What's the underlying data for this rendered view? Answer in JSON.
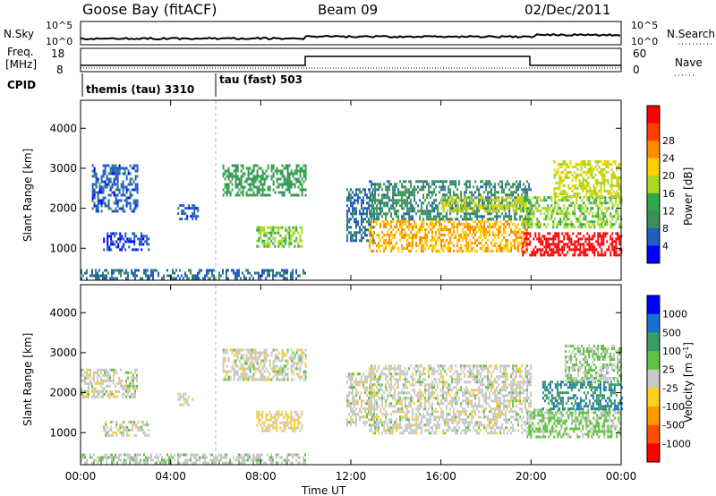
{
  "header": {
    "site": "Goose Bay (fitACF)",
    "beam": "Beam 09",
    "date": "02/Dec/2011"
  },
  "sidepanel": {
    "nsky": "N.Sky",
    "nsky_ticks": [
      "10^5",
      "10^0"
    ],
    "freq_line1": "Freq.",
    "freq_line2": "[MHz]",
    "freq_ticks": [
      "18",
      "8"
    ],
    "cpid": "CPID",
    "nsearch": "N.Search",
    "nsearch_ticks": [
      "10^5",
      "10^0"
    ],
    "nave": "Nave",
    "nave_ticks": [
      "60",
      "0"
    ]
  },
  "cpid_labels": [
    "themis (tau) 3310",
    "tau (fast) 503"
  ],
  "colors": {
    "power": [
      "#0000ff",
      "#1f5fbf",
      "#3a8f5a",
      "#2fa84a",
      "#a8d820",
      "#ffd000",
      "#ff8c00",
      "#ff4000",
      "#ff0000"
    ],
    "velocity": [
      "#0000ff",
      "#1a6fcf",
      "#3a9a6a",
      "#60c040",
      "#c8c8c8",
      "#ffd020",
      "#ff9a00",
      "#ff5000",
      "#ff0000"
    ]
  },
  "chart_data": [
    {
      "type": "heatmap",
      "title": "Power",
      "ylabel": "Slant Range [km]",
      "xlabel": "Time UT",
      "x_ticks": [
        "00:00",
        "04:00",
        "08:00",
        "12:00",
        "16:00",
        "20:00",
        "00:00"
      ],
      "xlim_hours": [
        0,
        24
      ],
      "y_ticks": [
        1000,
        2000,
        3000,
        4000
      ],
      "ylim_km": [
        200,
        4700
      ],
      "colorbar": {
        "label": "Power [dB]",
        "ticks": [
          "4",
          "8",
          "12",
          "16",
          "20",
          "24",
          "28"
        ],
        "range": [
          0,
          30
        ]
      },
      "regions": [
        {
          "t": [
            0.0,
            10.0
          ],
          "r": [
            220,
            480
          ],
          "v": 6
        },
        {
          "t": [
            0.5,
            2.5
          ],
          "r": [
            1900,
            3100
          ],
          "v": 5
        },
        {
          "t": [
            1.0,
            3.0
          ],
          "r": [
            950,
            1400
          ],
          "v": 4
        },
        {
          "t": [
            4.3,
            5.2
          ],
          "r": [
            1700,
            2100
          ],
          "v": 5
        },
        {
          "t": [
            6.3,
            10.0
          ],
          "r": [
            2300,
            3100
          ],
          "v": 10
        },
        {
          "t": [
            7.8,
            9.8
          ],
          "r": [
            1050,
            1550
          ],
          "v": 14
        },
        {
          "t": [
            11.8,
            13.0
          ],
          "r": [
            1200,
            2500
          ],
          "v": 6
        },
        {
          "t": [
            12.8,
            20.0
          ],
          "r": [
            1700,
            2700
          ],
          "v": 8
        },
        {
          "t": [
            12.8,
            19.8
          ],
          "r": [
            950,
            1700
          ],
          "v": 20
        },
        {
          "t": [
            16.0,
            19.8
          ],
          "r": [
            1900,
            2300
          ],
          "v": 16
        },
        {
          "t": [
            19.6,
            24.0
          ],
          "r": [
            850,
            1400
          ],
          "v": 29
        },
        {
          "t": [
            19.6,
            24.0
          ],
          "r": [
            1500,
            2300
          ],
          "v": 14
        },
        {
          "t": [
            21.0,
            24.0
          ],
          "r": [
            2300,
            3200
          ],
          "v": 16
        }
      ]
    },
    {
      "type": "heatmap",
      "title": "Velocity",
      "ylabel": "Slant Range [km]",
      "xlabel": "Time UT",
      "x_ticks": [
        "00:00",
        "04:00",
        "08:00",
        "12:00",
        "16:00",
        "20:00",
        "00:00"
      ],
      "xlim_hours": [
        0,
        24
      ],
      "y_ticks": [
        1000,
        2000,
        3000,
        4000
      ],
      "ylim_km": [
        200,
        4700
      ],
      "colorbar": {
        "label": "Velocity [m s^-1]",
        "ticks": [
          "1000",
          "500",
          "100",
          "25",
          "-25",
          "-100",
          "-500",
          "-1000"
        ],
        "range": [
          -1200,
          1200
        ]
      },
      "regions": [
        {
          "t": [
            0.0,
            10.0
          ],
          "r": [
            220,
            480
          ],
          "v": 50
        },
        {
          "t": [
            0.0,
            2.5
          ],
          "r": [
            1900,
            2600
          ],
          "v": 0
        },
        {
          "t": [
            1.0,
            3.0
          ],
          "r": [
            950,
            1300
          ],
          "v": 0
        },
        {
          "t": [
            4.3,
            5.0
          ],
          "r": [
            1700,
            2000
          ],
          "v": -60
        },
        {
          "t": [
            6.3,
            10.0
          ],
          "r": [
            2300,
            3100
          ],
          "v": 0
        },
        {
          "t": [
            7.8,
            9.8
          ],
          "r": [
            1050,
            1550
          ],
          "v": -150
        },
        {
          "t": [
            11.8,
            13.0
          ],
          "r": [
            1200,
            2500
          ],
          "v": 0
        },
        {
          "t": [
            12.8,
            20.0
          ],
          "r": [
            1000,
            2700
          ],
          "v": 0
        },
        {
          "t": [
            19.8,
            24.0
          ],
          "r": [
            900,
            1600
          ],
          "v": 200
        },
        {
          "t": [
            20.5,
            24.0
          ],
          "r": [
            1600,
            2300
          ],
          "v": 600
        },
        {
          "t": [
            21.5,
            24.0
          ],
          "r": [
            2300,
            3200
          ],
          "v": 120
        }
      ]
    }
  ]
}
